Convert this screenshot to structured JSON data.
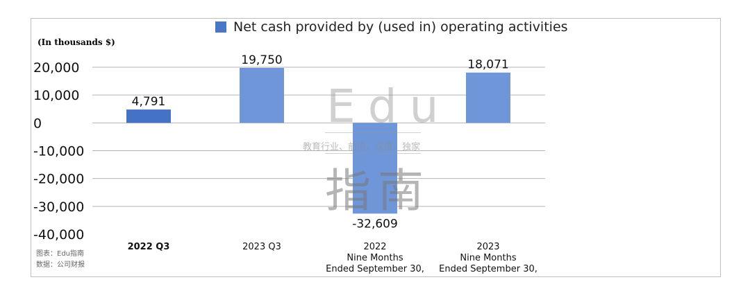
{
  "chart_data": {
    "type": "bar",
    "legend": "Net cash provided by (used in) operating activities",
    "unit_label": "(In thousands $)",
    "categories": [
      [
        "2022 Q3"
      ],
      [
        "2023 Q3"
      ],
      [
        "2022",
        "Nine Months",
        "Ended September 30,"
      ],
      [
        "2023",
        "Nine Months",
        "Ended September 30,"
      ]
    ],
    "values": [
      4791,
      19750,
      -32609,
      18071
    ],
    "value_labels": [
      "4,791",
      "19,750",
      "-32,609",
      "18,071"
    ],
    "yticks": [
      20000,
      10000,
      0,
      -10000,
      -20000,
      -30000,
      -40000
    ],
    "ytick_labels": [
      "20,000",
      "10,000",
      "0",
      "-10,000",
      "-20,000",
      "-30,000",
      "-40,000"
    ],
    "ylim": [
      -40000,
      20000
    ],
    "bar_colors": [
      "#4472c4",
      "#6f96d8",
      "#6f96d8",
      "#6f96d8"
    ],
    "legend_color": "#4a76c8",
    "grid": true,
    "legend_position": "top-center"
  },
  "source": {
    "chart_credit": "图表：Edu指南",
    "data_credit": "数据：公司财报"
  },
  "watermark": {
    "brand": "Edu",
    "slogan": "教育行业、前沿、深度、独家",
    "name_cn": "指南"
  }
}
